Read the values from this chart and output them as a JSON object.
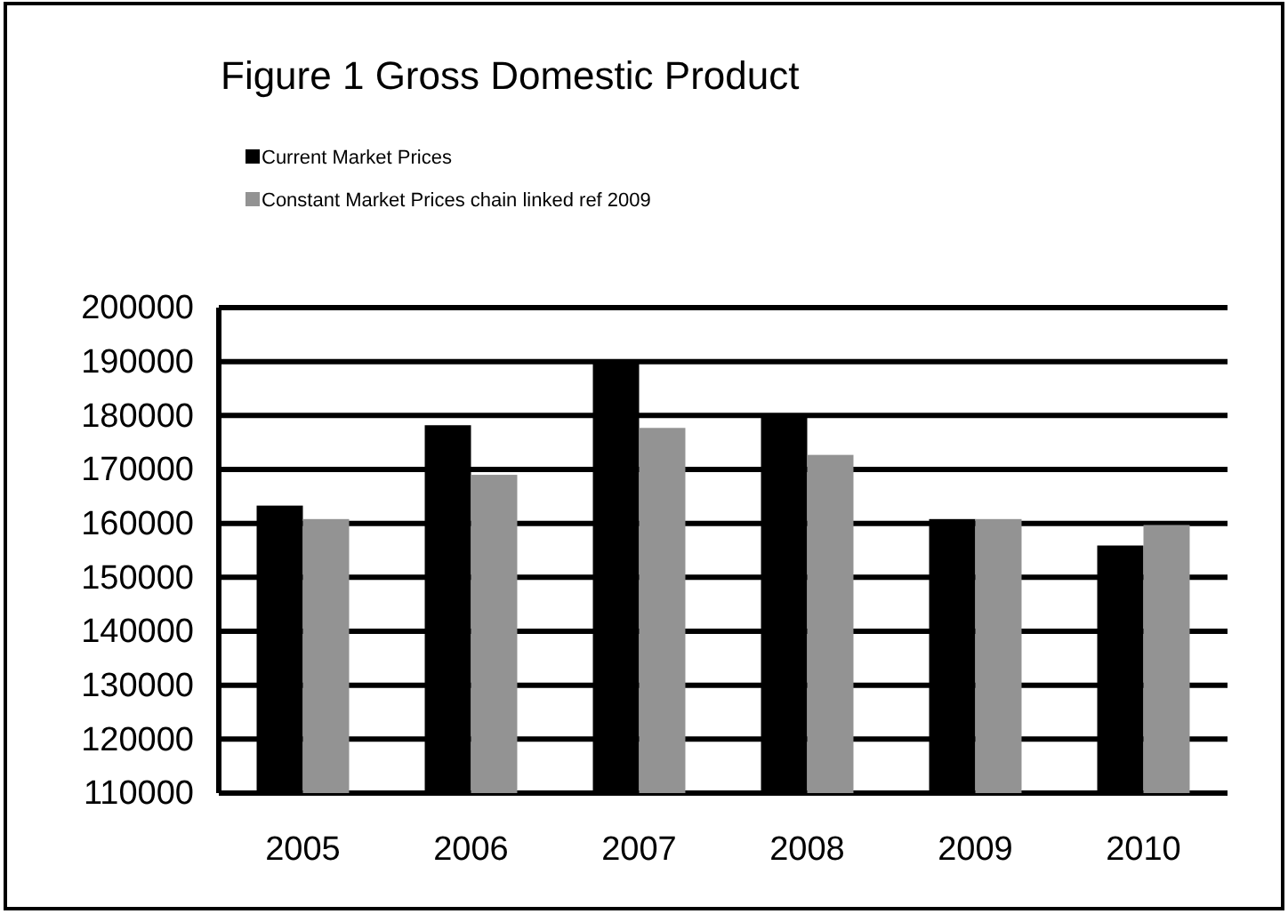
{
  "chart_data": {
    "type": "bar",
    "title": "Figure 1 Gross Domestic Product",
    "categories": [
      "2005",
      "2006",
      "2007",
      "2008",
      "2009",
      "2010"
    ],
    "series": [
      {
        "name": "Current Market Prices",
        "color": "#000000",
        "values": [
          163300,
          178200,
          190000,
          180000,
          160800,
          155900
        ]
      },
      {
        "name": "Constant Market Prices chain linked ref 2009",
        "color": "#939393",
        "values": [
          160800,
          169000,
          177700,
          172700,
          160800,
          159700
        ]
      }
    ],
    "ylim": [
      110000,
      200000
    ],
    "yticks": [
      110000,
      120000,
      130000,
      140000,
      150000,
      160000,
      170000,
      180000,
      190000,
      200000
    ],
    "grid": "y",
    "legend": "top left"
  }
}
